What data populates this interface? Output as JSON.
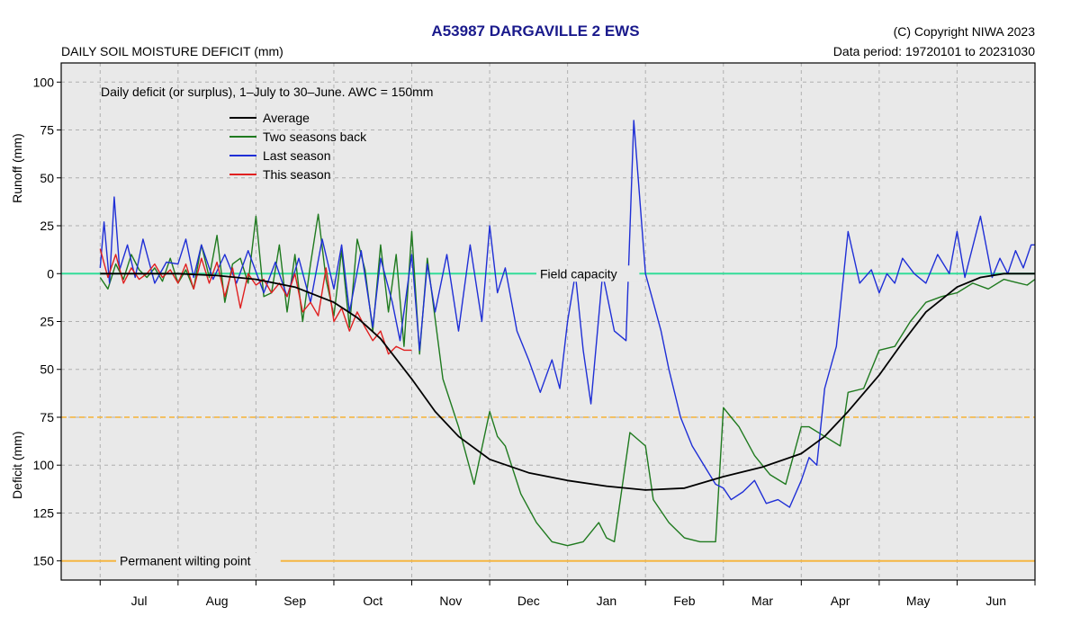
{
  "header": {
    "title": "A53987  DARGAVILLE 2 EWS",
    "copyright": "(C) Copyright NIWA  2023",
    "subtitle": "DAILY SOIL MOISTURE DEFICIT (mm)",
    "data_period": "Data period:  19720101  to  20231030"
  },
  "colors": {
    "average": "#000000",
    "two_seasons_back": "#1f7a1f",
    "last_season": "#1f2fd6",
    "this_season": "#e02020",
    "field_capacity": "#33dd99",
    "reference_orange": "#f5b642",
    "plot_background": "#e9e9e9",
    "title": "#1a1a8c"
  },
  "chart_data": {
    "type": "line",
    "ylabel_top": "Runoff (mm)",
    "ylabel_bottom": "Deficit (mm)",
    "y_axis_note": "Upward = runoff/surplus (mm); downward = deficit (mm). Values stored as signed: positive = runoff, negative = deficit.",
    "ylim": [
      -160,
      110
    ],
    "yticks": [
      100,
      75,
      50,
      25,
      0,
      -25,
      -50,
      -75,
      -100,
      -125,
      -150
    ],
    "ytick_labels": [
      "100",
      "75",
      "50",
      "25",
      "0",
      "25",
      "50",
      "75",
      "100",
      "125",
      "150"
    ],
    "xlim": [
      -0.5,
      12.0
    ],
    "categories": [
      "Jul",
      "Aug",
      "Sep",
      "Oct",
      "Nov",
      "Dec",
      "Jan",
      "Feb",
      "Mar",
      "Apr",
      "May",
      "Jun"
    ],
    "x_unit": "months after 1 July",
    "annotation": "Daily deficit (or surplus), 1–July to 30–June.  AWC = 150mm",
    "reference_lines": [
      {
        "y": 0,
        "label": "Field capacity",
        "style": "solid",
        "color_key": "field_capacity"
      },
      {
        "y": -75,
        "label": "",
        "style": "dashed",
        "color_key": "reference_orange"
      },
      {
        "y": -150,
        "label": "Permanent wilting point",
        "style": "solid",
        "color_key": "reference_orange"
      }
    ],
    "legend_position": "upper-left",
    "grid": true,
    "series": [
      {
        "name": "Average",
        "color_key": "average",
        "x": [
          0,
          0.5,
          1,
          1.5,
          2,
          2.5,
          3,
          3.3,
          3.6,
          4,
          4.3,
          4.6,
          5,
          5.5,
          6,
          6.5,
          7,
          7.5,
          8,
          8.5,
          9,
          9.3,
          9.6,
          10,
          10.3,
          10.6,
          11,
          11.3,
          11.6,
          12
        ],
        "y": [
          0,
          0,
          0,
          -1,
          -3,
          -7,
          -15,
          -23,
          -34,
          -55,
          -72,
          -85,
          -97,
          -104,
          -108,
          -111,
          -113,
          -112,
          -106,
          -101,
          -94,
          -85,
          -72,
          -53,
          -36,
          -20,
          -7,
          -2,
          0,
          0
        ]
      },
      {
        "name": "Two seasons back",
        "color_key": "two_seasons_back",
        "x": [
          0,
          0.1,
          0.2,
          0.3,
          0.4,
          0.5,
          0.6,
          0.7,
          0.8,
          0.9,
          1.0,
          1.1,
          1.2,
          1.3,
          1.4,
          1.5,
          1.6,
          1.7,
          1.8,
          1.9,
          2.0,
          2.1,
          2.2,
          2.3,
          2.4,
          2.5,
          2.6,
          2.7,
          2.8,
          2.9,
          3.0,
          3.1,
          3.2,
          3.3,
          3.4,
          3.5,
          3.6,
          3.7,
          3.8,
          3.9,
          4.0,
          4.1,
          4.2,
          4.4,
          4.6,
          4.8,
          5.0,
          5.1,
          5.2,
          5.4,
          5.6,
          5.8,
          6.0,
          6.2,
          6.4,
          6.5,
          6.6,
          6.8,
          7.0,
          7.1,
          7.3,
          7.5,
          7.7,
          7.9,
          8.0,
          8.1,
          8.2,
          8.4,
          8.6,
          8.8,
          9.0,
          9.1,
          9.3,
          9.5,
          9.6,
          9.8,
          10.0,
          10.2,
          10.4,
          10.6,
          10.8,
          11.0,
          11.2,
          11.4,
          11.6,
          11.7,
          11.8,
          11.9,
          12.0
        ],
        "y": [
          -2,
          -8,
          5,
          -3,
          10,
          2,
          -2,
          3,
          -4,
          8,
          -5,
          2,
          -8,
          15,
          -2,
          20,
          -15,
          5,
          8,
          -5,
          30,
          -12,
          -10,
          15,
          -20,
          10,
          -25,
          5,
          31,
          -3,
          -22,
          12,
          -28,
          18,
          2,
          -30,
          15,
          -20,
          10,
          -38,
          22,
          -42,
          8,
          -55,
          -80,
          -110,
          -72,
          -85,
          -90,
          -115,
          -130,
          -140,
          -142,
          -140,
          -130,
          -138,
          -140,
          -83,
          -90,
          -118,
          -130,
          -138,
          -140,
          -140,
          -70,
          -75,
          -80,
          -95,
          -105,
          -110,
          -80,
          -80,
          -85,
          -90,
          -62,
          -60,
          -40,
          -38,
          -25,
          -15,
          -12,
          -10,
          -5,
          -8,
          -3,
          -4,
          -5,
          -6,
          -3
        ]
      },
      {
        "name": "Last season",
        "color_key": "last_season",
        "x": [
          0,
          0.05,
          0.12,
          0.18,
          0.25,
          0.35,
          0.45,
          0.55,
          0.7,
          0.85,
          1.0,
          1.1,
          1.2,
          1.3,
          1.45,
          1.6,
          1.75,
          1.9,
          2.1,
          2.25,
          2.4,
          2.55,
          2.7,
          2.85,
          3.0,
          3.1,
          3.2,
          3.35,
          3.5,
          3.6,
          3.75,
          3.85,
          4.0,
          4.1,
          4.2,
          4.3,
          4.45,
          4.6,
          4.75,
          4.9,
          5.0,
          5.1,
          5.2,
          5.35,
          5.5,
          5.65,
          5.8,
          5.9,
          6.0,
          6.1,
          6.2,
          6.3,
          6.45,
          6.6,
          6.75,
          6.85,
          7.0,
          7.1,
          7.2,
          7.3,
          7.45,
          7.6,
          7.75,
          7.9,
          8.0,
          8.1,
          8.25,
          8.4,
          8.55,
          8.7,
          8.85,
          9.0,
          9.1,
          9.2,
          9.3,
          9.45,
          9.6,
          9.75,
          9.9,
          10.0,
          10.1,
          10.2,
          10.3,
          10.45,
          10.6,
          10.75,
          10.9,
          11.0,
          11.1,
          11.3,
          11.45,
          11.55,
          11.65,
          11.75,
          11.85,
          11.95,
          12.0
        ],
        "y": [
          3,
          27,
          -5,
          40,
          2,
          15,
          -2,
          18,
          -5,
          6,
          5,
          18,
          -2,
          15,
          -3,
          10,
          -5,
          12,
          -10,
          6,
          -12,
          8,
          -15,
          18,
          -8,
          15,
          -20,
          12,
          -28,
          8,
          -15,
          -35,
          10,
          -40,
          5,
          -20,
          10,
          -30,
          15,
          -25,
          25,
          -10,
          3,
          -30,
          -45,
          -62,
          -45,
          -60,
          -25,
          0,
          -40,
          -68,
          0,
          -30,
          -35,
          80,
          0,
          -15,
          -30,
          -50,
          -75,
          -90,
          -100,
          -110,
          -112,
          -118,
          -114,
          -108,
          -120,
          -118,
          -122,
          -108,
          -96,
          -100,
          -60,
          -38,
          22,
          -5,
          2,
          -10,
          0,
          -5,
          8,
          0,
          -5,
          10,
          0,
          22,
          -2,
          30,
          -2,
          8,
          0,
          12,
          3,
          15,
          15
        ]
      },
      {
        "name": "This season",
        "color_key": "this_season",
        "x": [
          0,
          0.1,
          0.2,
          0.3,
          0.4,
          0.5,
          0.6,
          0.7,
          0.8,
          0.9,
          1.0,
          1.1,
          1.2,
          1.3,
          1.4,
          1.5,
          1.6,
          1.7,
          1.8,
          1.9,
          2.0,
          2.1,
          2.2,
          2.3,
          2.4,
          2.5,
          2.6,
          2.7,
          2.8,
          2.9,
          3.0,
          3.1,
          3.2,
          3.3,
          3.4,
          3.5,
          3.6,
          3.7,
          3.8,
          3.9,
          4.0
        ],
        "y": [
          13,
          -2,
          10,
          -5,
          3,
          -3,
          0,
          5,
          -2,
          2,
          -5,
          5,
          -8,
          8,
          -5,
          6,
          -12,
          3,
          -18,
          0,
          -6,
          -3,
          -10,
          -5,
          -12,
          0,
          -20,
          -15,
          -22,
          3,
          -25,
          -18,
          -30,
          -20,
          -28,
          -35,
          -30,
          -42,
          -38,
          -40,
          -40
        ]
      }
    ]
  }
}
